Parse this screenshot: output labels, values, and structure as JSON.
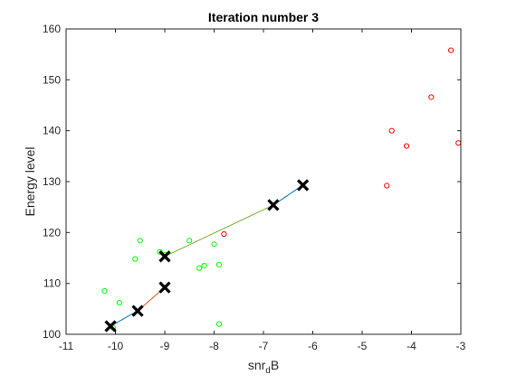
{
  "chart_data": {
    "type": "scatter",
    "title": "Iteration number 3",
    "xlabel": "snr",
    "xlabel_sub": "d",
    "xlabel_tail": "B",
    "ylabel": "Energy level",
    "xlim": [
      -11,
      -3
    ],
    "ylim": [
      100,
      160
    ],
    "xticks": [
      -11,
      -10,
      -9,
      -8,
      -7,
      -6,
      -5,
      -4,
      -3
    ],
    "yticks": [
      100,
      110,
      120,
      130,
      140,
      150,
      160
    ],
    "grid": false,
    "background_color": "#ffffff",
    "axis_color": "#262626",
    "series": [
      {
        "color": "#00ff00",
        "marker": "circle",
        "points": [
          [
            -10.22,
            108.5
          ],
          [
            -10.05,
            101.3
          ],
          [
            -9.92,
            106.2
          ],
          [
            -9.6,
            114.8
          ],
          [
            -9.5,
            118.4
          ],
          [
            -9.1,
            116.2
          ],
          [
            -9.0,
            115.6
          ],
          [
            -8.5,
            118.4
          ],
          [
            -8.3,
            113.0
          ],
          [
            -8.2,
            113.5
          ],
          [
            -8.0,
            117.7
          ],
          [
            -7.9,
            113.7
          ],
          [
            -7.9,
            102.0
          ]
        ]
      },
      {
        "color": "#ff0000",
        "marker": "circle",
        "points": [
          [
            -7.8,
            119.7
          ],
          [
            -4.5,
            129.2
          ],
          [
            -4.4,
            140.0
          ],
          [
            -4.1,
            137.0
          ],
          [
            -3.6,
            146.6
          ],
          [
            -3.2,
            155.8
          ],
          [
            -3.05,
            137.6
          ]
        ]
      }
    ],
    "centroids": {
      "color": "#000000",
      "marker": "x",
      "points": [
        [
          -10.1,
          101.6
        ],
        [
          -9.55,
          104.6
        ],
        [
          -9.0,
          109.2
        ],
        [
          -9.0,
          115.3
        ],
        [
          -6.8,
          125.4
        ],
        [
          -6.2,
          129.3
        ]
      ]
    },
    "trail_segments": [
      {
        "color": "#0072bd",
        "from": [
          -10.1,
          101.6
        ],
        "to": [
          -9.55,
          104.6
        ]
      },
      {
        "color": "#d95319",
        "from": [
          -9.55,
          104.6
        ],
        "to": [
          -9.0,
          109.2
        ]
      },
      {
        "color": "#77ac30",
        "from": [
          -9.0,
          115.3
        ],
        "to": [
          -6.8,
          125.4
        ]
      },
      {
        "color": "#0072bd",
        "from": [
          -6.8,
          125.4
        ],
        "to": [
          -6.2,
          129.3
        ]
      }
    ]
  }
}
